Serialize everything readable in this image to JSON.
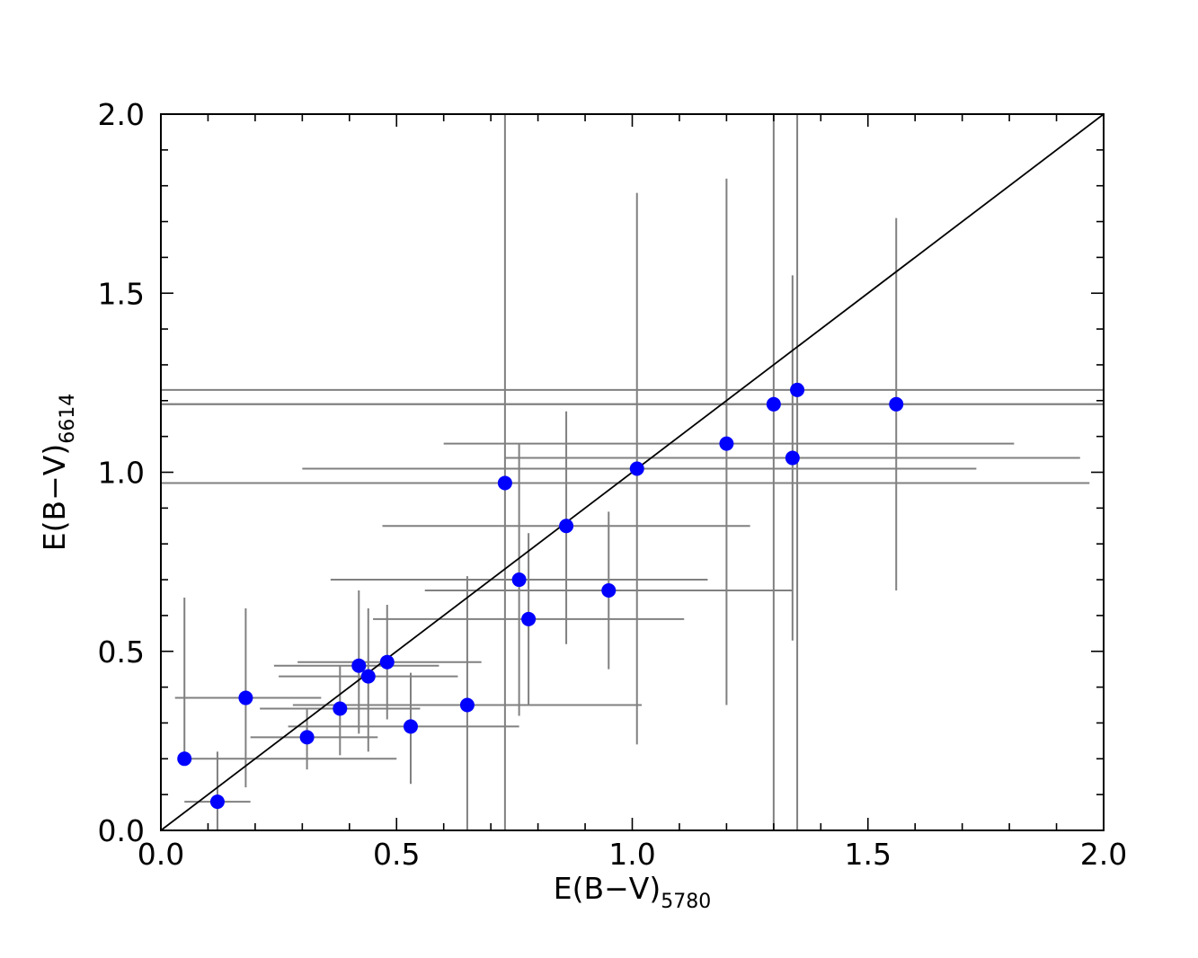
{
  "chart_data": {
    "type": "scatter",
    "title": "",
    "xlabel": {
      "main": "E(B−V)",
      "sub": "5780"
    },
    "ylabel": {
      "main": "E(B−V)",
      "sub": "6614"
    },
    "xlim": [
      0.0,
      2.0
    ],
    "ylim": [
      0.0,
      2.0
    ],
    "xticks": [
      "0.0",
      "0.5",
      "1.0",
      "1.5",
      "2.0"
    ],
    "yticks": [
      "0.0",
      "0.5",
      "1.0",
      "1.5",
      "2.0"
    ],
    "grid": false,
    "reference_line": {
      "type": "y=x",
      "color": "#000000"
    },
    "marker_color": "#0000ff",
    "errorbar_color": "#808080",
    "points": [
      {
        "x": 0.05,
        "y": 0.2,
        "xerr": [
          0.05,
          0.5
        ],
        "yerr": [
          0.2,
          0.65
        ]
      },
      {
        "x": 0.12,
        "y": 0.08,
        "xerr": [
          0.05,
          0.19
        ],
        "yerr": [
          0.0,
          0.22
        ]
      },
      {
        "x": 0.18,
        "y": 0.37,
        "xerr": [
          0.03,
          0.34
        ],
        "yerr": [
          0.12,
          0.62
        ]
      },
      {
        "x": 0.31,
        "y": 0.26,
        "xerr": [
          0.19,
          0.46
        ],
        "yerr": [
          0.17,
          0.34
        ]
      },
      {
        "x": 0.38,
        "y": 0.34,
        "xerr": [
          0.21,
          0.55
        ],
        "yerr": [
          0.21,
          0.46
        ]
      },
      {
        "x": 0.42,
        "y": 0.46,
        "xerr": [
          0.24,
          0.59
        ],
        "yerr": [
          0.27,
          0.67
        ]
      },
      {
        "x": 0.44,
        "y": 0.43,
        "xerr": [
          0.25,
          0.63
        ],
        "yerr": [
          0.22,
          0.62
        ]
      },
      {
        "x": 0.48,
        "y": 0.47,
        "xerr": [
          0.29,
          0.68
        ],
        "yerr": [
          0.31,
          0.63
        ]
      },
      {
        "x": 0.53,
        "y": 0.29,
        "xerr": [
          0.27,
          0.76
        ],
        "yerr": [
          0.13,
          0.44
        ]
      },
      {
        "x": 0.65,
        "y": 0.35,
        "xerr": [
          0.28,
          1.02
        ],
        "yerr": [
          0.0,
          0.71
        ]
      },
      {
        "x": 0.73,
        "y": 0.97,
        "xerr": [
          0.0,
          1.97
        ],
        "yerr": [
          0.0,
          2.0
        ]
      },
      {
        "x": 0.76,
        "y": 0.7,
        "xerr": [
          0.36,
          1.16
        ],
        "yerr": [
          0.32,
          1.08
        ]
      },
      {
        "x": 0.78,
        "y": 0.59,
        "xerr": [
          0.45,
          1.11
        ],
        "yerr": [
          0.35,
          0.83
        ]
      },
      {
        "x": 0.86,
        "y": 0.85,
        "xerr": [
          0.47,
          1.25
        ],
        "yerr": [
          0.52,
          1.17
        ]
      },
      {
        "x": 0.95,
        "y": 0.67,
        "xerr": [
          0.56,
          1.34
        ],
        "yerr": [
          0.45,
          0.89
        ]
      },
      {
        "x": 1.01,
        "y": 1.01,
        "xerr": [
          0.3,
          1.73
        ],
        "yerr": [
          0.24,
          1.78
        ]
      },
      {
        "x": 1.2,
        "y": 1.08,
        "xerr": [
          0.6,
          1.81
        ],
        "yerr": [
          0.35,
          1.82
        ]
      },
      {
        "x": 1.3,
        "y": 1.19,
        "xerr": [
          0.0,
          2.0
        ],
        "yerr": [
          0.0,
          2.0
        ]
      },
      {
        "x": 1.34,
        "y": 1.04,
        "xerr": [
          0.73,
          1.95
        ],
        "yerr": [
          0.53,
          1.55
        ]
      },
      {
        "x": 1.35,
        "y": 1.23,
        "xerr": [
          0.0,
          2.0
        ],
        "yerr": [
          0.0,
          2.0
        ]
      },
      {
        "x": 1.56,
        "y": 1.19,
        "xerr": [
          0.0,
          2.0
        ],
        "yerr": [
          0.67,
          1.71
        ]
      }
    ]
  }
}
